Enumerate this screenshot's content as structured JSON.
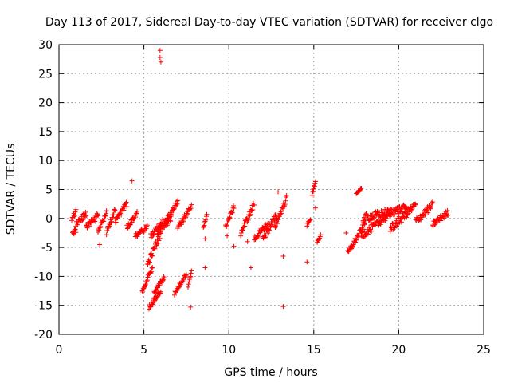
{
  "chart_data": {
    "type": "scatter",
    "title": "Day 113 of 2017, Sidereal Day-to-day VTEC variation (SDTVAR) for receiver clgo",
    "xlabel": "GPS time / hours",
    "ylabel": "SDTVAR / TECUs",
    "xlim": [
      0,
      25
    ],
    "ylim": [
      -20,
      30
    ],
    "xticks": [
      "0",
      "5",
      "10",
      "15",
      "20",
      "25"
    ],
    "yticks": [
      "-20",
      "-15",
      "-10",
      "-5",
      "0",
      "5",
      "10",
      "15",
      "20",
      "25",
      "30"
    ],
    "grid": true,
    "marker": "+",
    "color": "#ff0000",
    "series": [
      {
        "name": "clgo",
        "segments": [
          [
            0.75,
            1.0,
            0.0,
            1.2,
            0.4
          ],
          [
            0.8,
            1.0,
            -2.8,
            -2.0,
            0.4
          ],
          [
            1.0,
            1.6,
            -1.0,
            0.8,
            0.5
          ],
          [
            1.6,
            2.3,
            -1.5,
            0.5,
            0.5
          ],
          [
            2.3,
            2.8,
            -2.0,
            1.0,
            0.5
          ],
          [
            2.8,
            3.3,
            -2.5,
            1.5,
            0.5
          ],
          [
            3.3,
            4.0,
            -0.5,
            2.5,
            0.5
          ],
          [
            4.0,
            4.6,
            -1.5,
            1.0,
            0.5
          ],
          [
            4.5,
            5.2,
            -3.0,
            -1.5,
            0.4
          ],
          [
            4.9,
            5.5,
            -12.5,
            -8.5,
            0.4
          ],
          [
            5.2,
            6.0,
            -8.0,
            -2.5,
            0.6
          ],
          [
            5.4,
            6.1,
            -3.0,
            -0.5,
            0.4
          ],
          [
            5.3,
            6.0,
            -15.3,
            -12.5,
            0.4
          ],
          [
            5.6,
            6.2,
            -13.0,
            -10.0,
            0.4
          ],
          [
            5.8,
            6.6,
            -2.5,
            0.0,
            0.5
          ],
          [
            6.2,
            7.0,
            -1.0,
            3.0,
            0.5
          ],
          [
            6.8,
            7.5,
            -13.0,
            -9.5,
            0.3
          ],
          [
            7.0,
            7.8,
            -1.5,
            2.0,
            0.5
          ],
          [
            7.6,
            7.8,
            -12.0,
            -9.0,
            0.3
          ],
          [
            8.5,
            8.7,
            -1.5,
            0.5,
            0.3
          ],
          [
            9.8,
            10.3,
            -1.5,
            2.0,
            0.4
          ],
          [
            10.7,
            11.5,
            -2.5,
            2.5,
            0.6
          ],
          [
            11.5,
            12.3,
            -3.5,
            -1.0,
            0.5
          ],
          [
            12.0,
            12.8,
            -3.5,
            0.5,
            0.6
          ],
          [
            12.7,
            13.4,
            -1.5,
            3.5,
            0.5
          ],
          [
            14.6,
            14.8,
            -1.2,
            0.0,
            0.3
          ],
          [
            14.9,
            15.1,
            4.0,
            6.5,
            0.3
          ],
          [
            15.2,
            15.4,
            -4.0,
            -3.0,
            0.2
          ],
          [
            17.0,
            18.0,
            -6.0,
            -1.0,
            0.5
          ],
          [
            17.5,
            17.8,
            4.3,
            5.2,
            0.1
          ],
          [
            17.8,
            19.5,
            -3.0,
            0.8,
            0.6
          ],
          [
            17.9,
            20.5,
            0.0,
            1.8,
            0.7
          ],
          [
            19.5,
            21.0,
            -1.8,
            2.3,
            0.7
          ],
          [
            21.0,
            22.0,
            -0.5,
            2.3,
            0.6
          ],
          [
            22.0,
            22.9,
            -1.0,
            1.0,
            0.5
          ]
        ],
        "outliers": [
          [
            4.3,
            6.5
          ],
          [
            5.95,
            29.0
          ],
          [
            5.95,
            27.8
          ],
          [
            6.0,
            27.0
          ],
          [
            2.4,
            -4.5
          ],
          [
            7.75,
            -15.3
          ],
          [
            8.6,
            -3.5
          ],
          [
            8.6,
            -8.5
          ],
          [
            9.9,
            -3.0
          ],
          [
            10.3,
            -4.8
          ],
          [
            11.3,
            -8.5
          ],
          [
            11.1,
            -4.0
          ],
          [
            12.9,
            4.6
          ],
          [
            13.2,
            -6.5
          ],
          [
            13.2,
            -15.2
          ],
          [
            14.6,
            -7.5
          ],
          [
            15.1,
            1.8
          ],
          [
            16.9,
            -2.5
          ]
        ]
      }
    ]
  }
}
